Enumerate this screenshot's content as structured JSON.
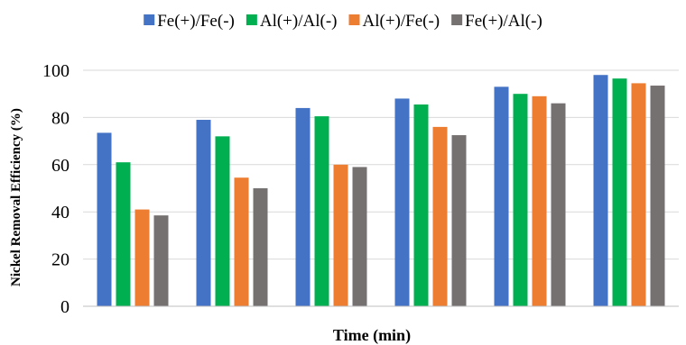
{
  "chart_data": {
    "type": "bar",
    "title": "",
    "xlabel": "Time (min)",
    "ylabel": "Nickel Removal Efficiency (%)",
    "ylim": [
      0,
      100
    ],
    "yticks": [
      0,
      20,
      40,
      60,
      80,
      100
    ],
    "categories": [
      "",
      "",
      "",
      "",
      "",
      ""
    ],
    "grid": "horizontal",
    "legend_position": "top",
    "series": [
      {
        "name": "Fe(+)/Fe(-)",
        "color": "#4472C4",
        "values": [
          73.5,
          79,
          84,
          88,
          93,
          98
        ]
      },
      {
        "name": "Al(+)/Al(-)",
        "color": "#00B050",
        "values": [
          61,
          72,
          80.5,
          85.5,
          90,
          96.5
        ]
      },
      {
        "name": "Al(+)/Fe(-)",
        "color": "#ED7D31",
        "values": [
          41,
          54.5,
          60,
          76,
          89,
          94.5
        ]
      },
      {
        "name": "Fe(+)/Al(-)",
        "color": "#767171",
        "values": [
          38.5,
          50,
          59,
          72.5,
          86,
          93.5
        ]
      }
    ]
  }
}
